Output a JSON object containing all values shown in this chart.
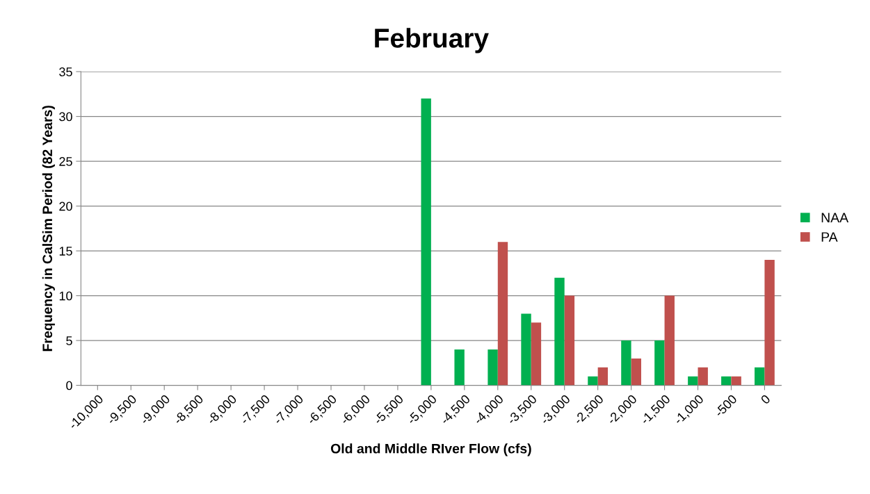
{
  "chart_data": {
    "type": "bar",
    "title": "February",
    "xlabel": "Old and Middle RIver Flow (cfs)",
    "ylabel": "Frequency in CalSim Period (82 Years)",
    "categories": [
      "-10,000",
      "-9,500",
      "-9,000",
      "-8,500",
      "-8,000",
      "-7,500",
      "-7,000",
      "-6,500",
      "-6,000",
      "-5,500",
      "-5,000",
      "-4,500",
      "-4,000",
      "-3,500",
      "-3,000",
      "-2,500",
      "-2,000",
      "-1,500",
      "-1,000",
      "-500",
      "0"
    ],
    "series": [
      {
        "name": "NAA",
        "color": "#00b050",
        "values": [
          0,
          0,
          0,
          0,
          0,
          0,
          0,
          0,
          0,
          0,
          32,
          4,
          4,
          8,
          12,
          1,
          5,
          5,
          1,
          1,
          2
        ]
      },
      {
        "name": "PA",
        "color": "#c0504d",
        "values": [
          0,
          0,
          0,
          0,
          0,
          0,
          0,
          0,
          0,
          0,
          0,
          0,
          16,
          7,
          10,
          2,
          3,
          10,
          2,
          1,
          14
        ]
      }
    ],
    "ylim": [
      0,
      35
    ],
    "yticks": [
      0,
      5,
      10,
      15,
      20,
      25,
      30,
      35
    ],
    "grid": "y",
    "legend": "right"
  }
}
